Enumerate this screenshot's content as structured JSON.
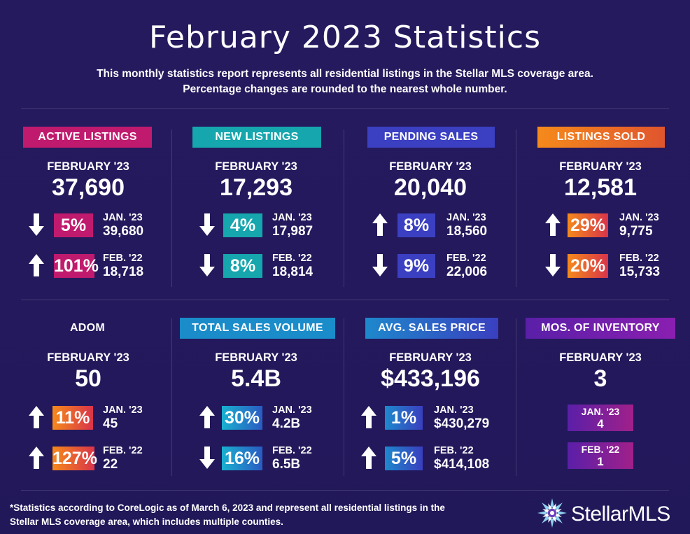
{
  "header": {
    "title": "February 2023 Statistics",
    "subtitle_line1": "This monthly statistics report represents all residential listings in the Stellar MLS coverage area.",
    "subtitle_line2": "Percentage changes are rounded to the nearest whole number."
  },
  "colors": {
    "background": "#23195a",
    "active_listings": "#c01a6e",
    "new_listings": "#16a6ad",
    "pending_sales": "#3b3fc2",
    "listings_sold": "#f07a1e",
    "total_sales_volume": "#1a8cc9",
    "mos_inventory": "#8a1fb0"
  },
  "stats": [
    {
      "label": "ACTIVE LISTINGS",
      "month": "FEBRUARY '23",
      "value": "37,690",
      "comparisons": [
        {
          "direction": "down",
          "arrow_icon": "arrow-down-icon",
          "pct": "5%",
          "label": "JAN. '23",
          "value": "39,680"
        },
        {
          "direction": "up",
          "arrow_icon": "arrow-up-icon",
          "pct": "101%",
          "label": "FEB. '22",
          "value": "18,718"
        }
      ]
    },
    {
      "label": "NEW LISTINGS",
      "month": "FEBRUARY '23",
      "value": "17,293",
      "comparisons": [
        {
          "direction": "down",
          "arrow_icon": "arrow-down-icon",
          "pct": "4%",
          "label": "JAN. '23",
          "value": "17,987"
        },
        {
          "direction": "down",
          "arrow_icon": "arrow-down-icon",
          "pct": "8%",
          "label": "FEB. '22",
          "value": "18,814"
        }
      ]
    },
    {
      "label": "PENDING SALES",
      "month": "FEBRUARY '23",
      "value": "20,040",
      "comparisons": [
        {
          "direction": "up",
          "arrow_icon": "arrow-up-icon",
          "pct": "8%",
          "label": "JAN. '23",
          "value": "18,560"
        },
        {
          "direction": "down",
          "arrow_icon": "arrow-down-icon",
          "pct": "9%",
          "label": "FEB. '22",
          "value": "22,006"
        }
      ]
    },
    {
      "label": "LISTINGS SOLD",
      "month": "FEBRUARY '23",
      "value": "12,581",
      "comparisons": [
        {
          "direction": "up",
          "arrow_icon": "arrow-up-icon",
          "pct": "29%",
          "label": "JAN. '23",
          "value": "9,775"
        },
        {
          "direction": "down",
          "arrow_icon": "arrow-down-icon",
          "pct": "20%",
          "label": "FEB. '22",
          "value": "15,733"
        }
      ]
    },
    {
      "label": "ADOM",
      "month": "FEBRUARY '23",
      "value": "50",
      "comparisons": [
        {
          "direction": "up",
          "arrow_icon": "arrow-up-icon",
          "pct": "11%",
          "label": "JAN. '23",
          "value": "45"
        },
        {
          "direction": "up",
          "arrow_icon": "arrow-up-icon",
          "pct": "127%",
          "label": "FEB. '22",
          "value": "22"
        }
      ]
    },
    {
      "label": "TOTAL SALES VOLUME",
      "month": "FEBRUARY '23",
      "value": "5.4B",
      "comparisons": [
        {
          "direction": "up",
          "arrow_icon": "arrow-up-icon",
          "pct": "30%",
          "label": "JAN. '23",
          "value": "4.2B"
        },
        {
          "direction": "down",
          "arrow_icon": "arrow-down-icon",
          "pct": "16%",
          "label": "FEB. '22",
          "value": "6.5B"
        }
      ]
    },
    {
      "label": "AVG. SALES PRICE",
      "month": "FEBRUARY '23",
      "value": "$433,196",
      "comparisons": [
        {
          "direction": "up",
          "arrow_icon": "arrow-up-icon",
          "pct": "1%",
          "label": "JAN. '23",
          "value": "$430,279"
        },
        {
          "direction": "up",
          "arrow_icon": "arrow-up-icon",
          "pct": "5%",
          "label": "FEB. '22",
          "value": "$414,108"
        }
      ]
    },
    {
      "label": "MOS. OF INVENTORY",
      "month": "FEBRUARY '23",
      "value": "3",
      "comparisons": [
        {
          "label": "JAN. '23",
          "value": "4"
        },
        {
          "label": "FEB. '22",
          "value": "1"
        }
      ]
    }
  ],
  "footnote": {
    "line1": "*Statistics according to CoreLogic as of March 6, 2023 and represent all residential listings in the",
    "line2": "Stellar MLS coverage area, which includes multiple counties."
  },
  "logo": {
    "text": "StellarMLS",
    "icon": "stellar-star-icon"
  }
}
